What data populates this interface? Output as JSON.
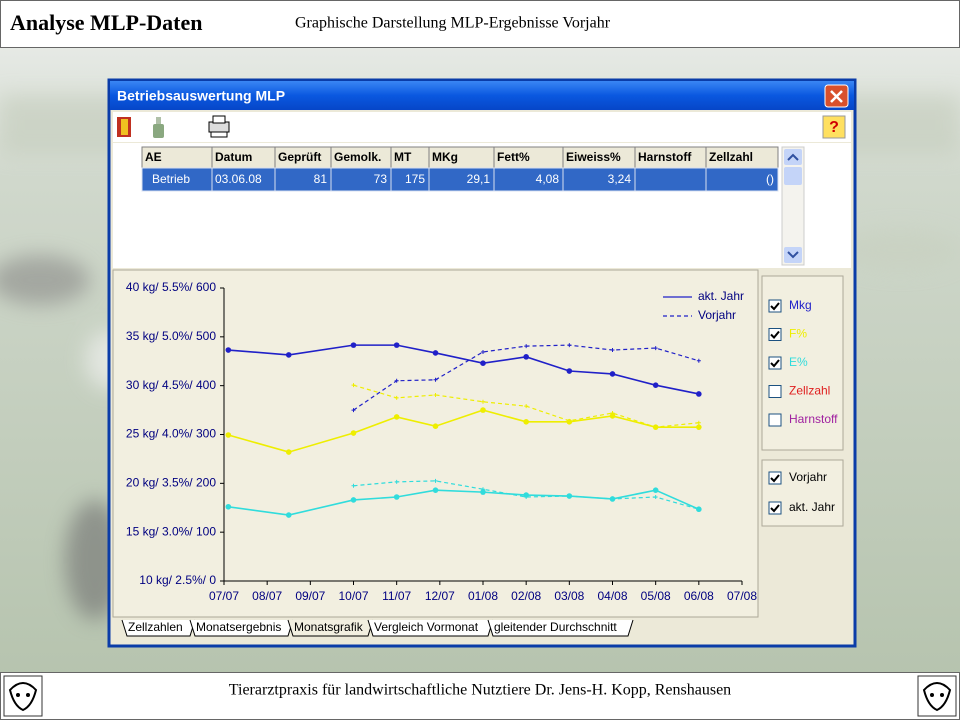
{
  "header": {
    "title": "Analyse MLP-Daten",
    "subtitle": "Graphische Darstellung MLP-Ergebnisse Vorjahr"
  },
  "window": {
    "title": "Betriebsauswertung MLP"
  },
  "table": {
    "columns": [
      "AE",
      "Datum",
      "Geprüft",
      "Gemolk.",
      "MT",
      "MKg",
      "Fett%",
      "Eiweiss%",
      "Harnstoff",
      "Zellzahl"
    ],
    "rows": [
      [
        "Betrieb",
        "03.06.08",
        "81",
        "73",
        "175",
        "29,1",
        "4,08",
        "3,24",
        null,
        "()"
      ]
    ]
  },
  "chart_data": {
    "type": "line",
    "x": [
      0.1,
      1.5,
      3,
      4,
      4.9,
      6,
      7,
      8,
      9,
      10,
      11
    ],
    "xlim": [
      0,
      12
    ],
    "xticks": [
      {
        "value": 0,
        "label": "07/07"
      },
      {
        "value": 1,
        "label": "08/07"
      },
      {
        "value": 2,
        "label": "09/07"
      },
      {
        "value": 3,
        "label": "10/07"
      },
      {
        "value": 4,
        "label": "11/07"
      },
      {
        "value": 5,
        "label": "12/07"
      },
      {
        "value": 6,
        "label": "01/08"
      },
      {
        "value": 7,
        "label": "02/08"
      },
      {
        "value": 8,
        "label": "03/08"
      },
      {
        "value": 9,
        "label": "04/08"
      },
      {
        "value": 10,
        "label": "05/08"
      },
      {
        "value": 11,
        "label": "06/08"
      },
      {
        "value": 12,
        "label": "07/08"
      }
    ],
    "ylim": [
      0,
      600
    ],
    "yticks": [
      {
        "value": 0,
        "label": "10 kg/ 2.5%/ 0"
      },
      {
        "value": 100,
        "label": "15 kg/ 3.0%/ 100"
      },
      {
        "value": 200,
        "label": "20 kg/ 3.5%/ 200"
      },
      {
        "value": 300,
        "label": "25 kg/ 4.0%/ 300"
      },
      {
        "value": 400,
        "label": "30 kg/ 4.5%/ 400"
      },
      {
        "value": 500,
        "label": "35 kg/ 5.0%/ 500"
      },
      {
        "value": 600,
        "label": "40 kg/ 5.5%/ 600"
      }
    ],
    "series": [
      {
        "color": "#2020c8",
        "dashed": false,
        "values": [
          473,
          463,
          483,
          483,
          467,
          446,
          459,
          430,
          424,
          401,
          383
        ]
      },
      {
        "color": "#2020c8",
        "dashed": true,
        "values": [
          null,
          null,
          350,
          410,
          412,
          469,
          481,
          483,
          473,
          477,
          451
        ]
      },
      {
        "color": "#eeee00",
        "dashed": false,
        "values": [
          299,
          264,
          303,
          336,
          317,
          350,
          326,
          326,
          338,
          315,
          315
        ]
      },
      {
        "color": "#eeee00",
        "dashed": true,
        "values": [
          null,
          null,
          401,
          375,
          381,
          367,
          358,
          328,
          344,
          315,
          324
        ]
      },
      {
        "color": "#30dcdc",
        "dashed": false,
        "values": [
          152,
          135,
          166,
          172,
          186,
          182,
          176,
          174,
          168,
          186,
          147
        ]
      },
      {
        "color": "#30dcdc",
        "dashed": true,
        "values": [
          null,
          null,
          195,
          203,
          205,
          188,
          172,
          174,
          168,
          172,
          147
        ]
      }
    ],
    "legend": [
      {
        "label": "akt. Jahr",
        "dashed": false,
        "color": "#2020c8"
      },
      {
        "label": "Vorjahr",
        "dashed": true,
        "color": "#2020c8"
      }
    ]
  },
  "checkboxes": [
    {
      "label": "Mkg",
      "checked": true,
      "color": "#2020c8"
    },
    {
      "label": "F%",
      "checked": true,
      "color": "#eeee00"
    },
    {
      "label": "E%",
      "checked": true,
      "color": "#30dcdc"
    },
    {
      "label": "Zellzahl",
      "checked": false,
      "color": "#e02020"
    },
    {
      "label": "Harnstoff",
      "checked": false,
      "color": "#a020a0"
    }
  ],
  "year_checkboxes": [
    {
      "label": "Vorjahr",
      "checked": true
    },
    {
      "label": "akt. Jahr",
      "checked": true
    }
  ],
  "tabs": [
    "Zellzahlen",
    "Monatsergebnis",
    "Monatsgrafik",
    "Vergleich Vormonat",
    "gleitender Durchschnitt"
  ],
  "active_tab": 2,
  "footer": "Tierarztpraxis für landwirtschaftliche Nutztiere Dr. Jens-H. Kopp, Renshausen"
}
